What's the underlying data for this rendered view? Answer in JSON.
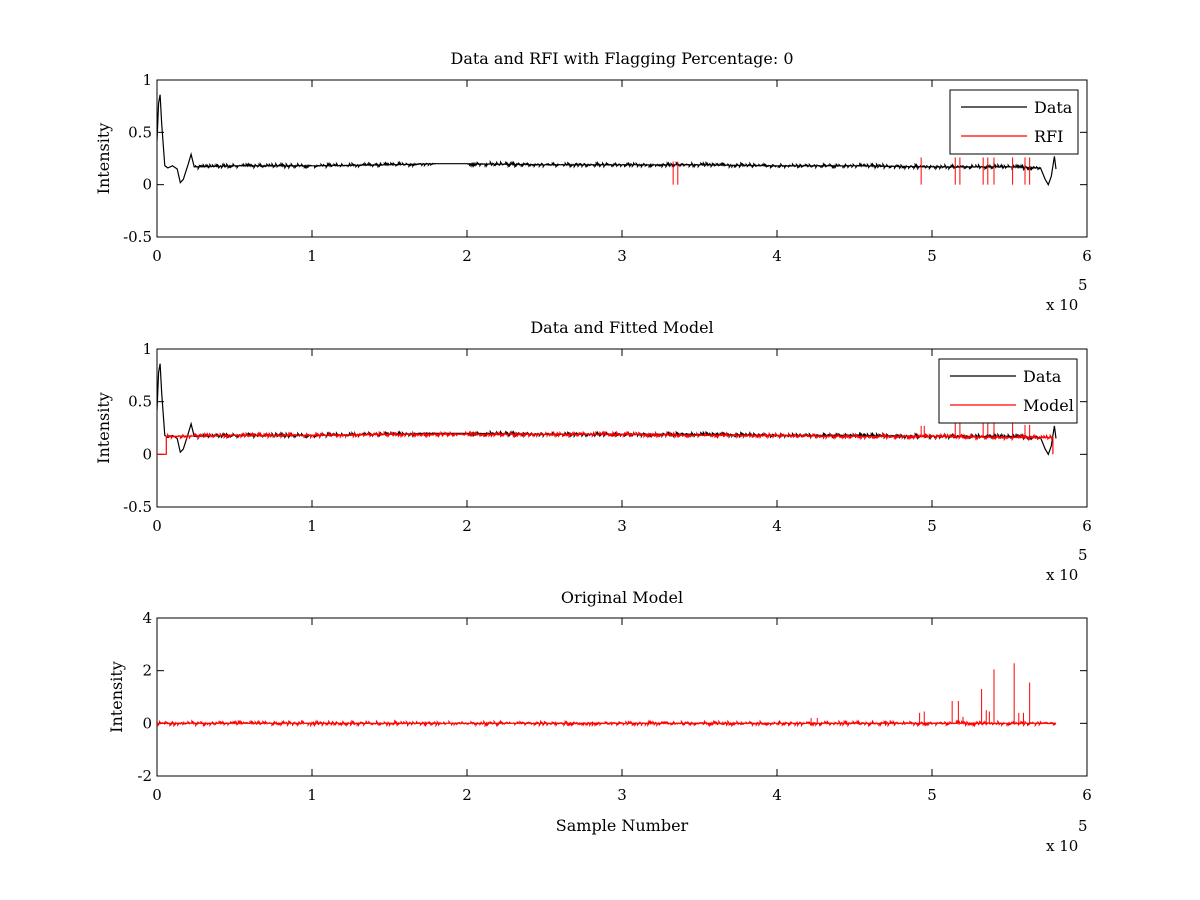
{
  "chart_data": [
    {
      "type": "line",
      "title": "Data and RFI with Flagging Percentage: 0",
      "xlabel": "",
      "ylabel": "Intensity",
      "xlim": [
        0,
        6
      ],
      "ylim": [
        -0.5,
        1
      ],
      "x_exponent_label": "x 10",
      "x_exponent_power": "5",
      "xticks": [
        "0",
        "1",
        "2",
        "3",
        "4",
        "5",
        "6"
      ],
      "yticks": [
        "-0.5",
        "0",
        "0.5",
        "1"
      ],
      "ytick_values": [
        -0.5,
        0,
        0.5,
        1
      ],
      "legend": {
        "position": "top-right",
        "entries": [
          {
            "name": "Data",
            "color": "#000000"
          },
          {
            "name": "RFI",
            "color": "#ff0000"
          }
        ]
      },
      "series": [
        {
          "name": "Data",
          "color": "#000000",
          "x": [
            0,
            0.01,
            0.02,
            0.03,
            0.05,
            0.07,
            0.1,
            0.13,
            0.15,
            0.17,
            0.2,
            0.22,
            0.24,
            0.5,
            1.0,
            1.5,
            1.8,
            2.0,
            2.5,
            3.0,
            3.5,
            4.0,
            4.5,
            5.0,
            5.5,
            5.7,
            5.73,
            5.75,
            5.77,
            5.79,
            5.8
          ],
          "y": [
            0.42,
            0.78,
            0.86,
            0.58,
            0.18,
            0.16,
            0.18,
            0.15,
            0.02,
            0.05,
            0.19,
            0.29,
            0.17,
            0.18,
            0.18,
            0.19,
            0.2,
            0.2,
            0.19,
            0.19,
            0.19,
            0.18,
            0.18,
            0.17,
            0.17,
            0.16,
            0.05,
            0.0,
            0.08,
            0.27,
            0.15
          ]
        },
        {
          "name": "RFI",
          "color": "#ff0000",
          "spikes": [
            {
              "x": 3.33,
              "y": 0.22
            },
            {
              "x": 3.36,
              "y": 0.22
            },
            {
              "x": 4.93,
              "y": 0.26
            },
            {
              "x": 5.15,
              "y": 0.26
            },
            {
              "x": 5.18,
              "y": 0.26
            },
            {
              "x": 5.33,
              "y": 0.26
            },
            {
              "x": 5.36,
              "y": 0.26
            },
            {
              "x": 5.4,
              "y": 0.26
            },
            {
              "x": 5.52,
              "y": 0.26
            },
            {
              "x": 5.6,
              "y": 0.26
            },
            {
              "x": 5.63,
              "y": 0.26
            }
          ]
        }
      ]
    },
    {
      "type": "line",
      "title": "Data and Fitted Model",
      "xlabel": "",
      "ylabel": "Intensity",
      "xlim": [
        0,
        6
      ],
      "ylim": [
        -0.5,
        1
      ],
      "x_exponent_label": "x 10",
      "x_exponent_power": "5",
      "xticks": [
        "0",
        "1",
        "2",
        "3",
        "4",
        "5",
        "6"
      ],
      "yticks": [
        "-0.5",
        "0",
        "0.5",
        "1"
      ],
      "ytick_values": [
        -0.5,
        0,
        0.5,
        1
      ],
      "legend": {
        "position": "top-right",
        "entries": [
          {
            "name": "Data",
            "color": "#000000"
          },
          {
            "name": "Model",
            "color": "#ff0000"
          }
        ]
      },
      "series": [
        {
          "name": "Data",
          "color": "#000000",
          "x": [
            0,
            0.01,
            0.02,
            0.03,
            0.05,
            0.07,
            0.1,
            0.13,
            0.15,
            0.17,
            0.2,
            0.22,
            0.24,
            0.5,
            1.0,
            1.5,
            1.8,
            2.0,
            2.5,
            3.0,
            3.5,
            4.0,
            4.5,
            5.0,
            5.5,
            5.7,
            5.73,
            5.75,
            5.77,
            5.79,
            5.8
          ],
          "y": [
            0.42,
            0.78,
            0.86,
            0.58,
            0.18,
            0.16,
            0.18,
            0.15,
            0.02,
            0.05,
            0.19,
            0.29,
            0.17,
            0.18,
            0.18,
            0.19,
            0.2,
            0.2,
            0.19,
            0.19,
            0.19,
            0.18,
            0.18,
            0.17,
            0.17,
            0.16,
            0.05,
            0.0,
            0.08,
            0.27,
            0.15
          ]
        },
        {
          "name": "Model",
          "color": "#ff0000",
          "x": [
            0,
            0.06,
            0.06,
            0.5,
            1.0,
            1.5,
            2.0,
            2.5,
            3.0,
            3.5,
            4.0,
            4.5,
            5.0,
            5.5,
            5.78,
            5.78
          ],
          "y": [
            0.0,
            0.0,
            0.17,
            0.18,
            0.18,
            0.19,
            0.19,
            0.19,
            0.19,
            0.18,
            0.18,
            0.17,
            0.17,
            0.16,
            0.16,
            0.0
          ],
          "spikes": [
            {
              "x": 4.93,
              "y": 0.27
            },
            {
              "x": 4.95,
              "y": 0.27
            },
            {
              "x": 5.15,
              "y": 0.3
            },
            {
              "x": 5.18,
              "y": 0.3
            },
            {
              "x": 5.33,
              "y": 0.3
            },
            {
              "x": 5.36,
              "y": 0.3
            },
            {
              "x": 5.4,
              "y": 0.3
            },
            {
              "x": 5.52,
              "y": 0.3
            },
            {
              "x": 5.6,
              "y": 0.28
            },
            {
              "x": 5.63,
              "y": 0.28
            }
          ]
        }
      ]
    },
    {
      "type": "line",
      "title": "Original Model",
      "xlabel": "Sample Number",
      "ylabel": "Intensity",
      "xlim": [
        0,
        6
      ],
      "ylim": [
        -2,
        4
      ],
      "x_exponent_label": "x 10",
      "x_exponent_power": "5",
      "xticks": [
        "0",
        "1",
        "2",
        "3",
        "4",
        "5",
        "6"
      ],
      "yticks": [
        "-2",
        "0",
        "2",
        "4"
      ],
      "ytick_values": [
        -2,
        0,
        2,
        4
      ],
      "series": [
        {
          "name": "",
          "color": "#ff0000",
          "x": [
            0,
            5.8
          ],
          "y": [
            0,
            0
          ],
          "spikes": [
            {
              "x": 4.22,
              "y": 0.2
            },
            {
              "x": 4.26,
              "y": 0.2
            },
            {
              "x": 4.45,
              "y": 0.1
            },
            {
              "x": 4.7,
              "y": 0.1
            },
            {
              "x": 4.73,
              "y": 0.12
            },
            {
              "x": 4.92,
              "y": 0.4
            },
            {
              "x": 4.95,
              "y": 0.45
            },
            {
              "x": 5.13,
              "y": 0.85
            },
            {
              "x": 5.17,
              "y": 0.85
            },
            {
              "x": 5.2,
              "y": 0.25
            },
            {
              "x": 5.32,
              "y": 1.3
            },
            {
              "x": 5.35,
              "y": 0.5
            },
            {
              "x": 5.37,
              "y": 0.45
            },
            {
              "x": 5.4,
              "y": 2.05
            },
            {
              "x": 5.53,
              "y": 2.28
            },
            {
              "x": 5.56,
              "y": 0.4
            },
            {
              "x": 5.59,
              "y": 0.4
            },
            {
              "x": 5.63,
              "y": 1.55
            }
          ]
        }
      ]
    }
  ]
}
